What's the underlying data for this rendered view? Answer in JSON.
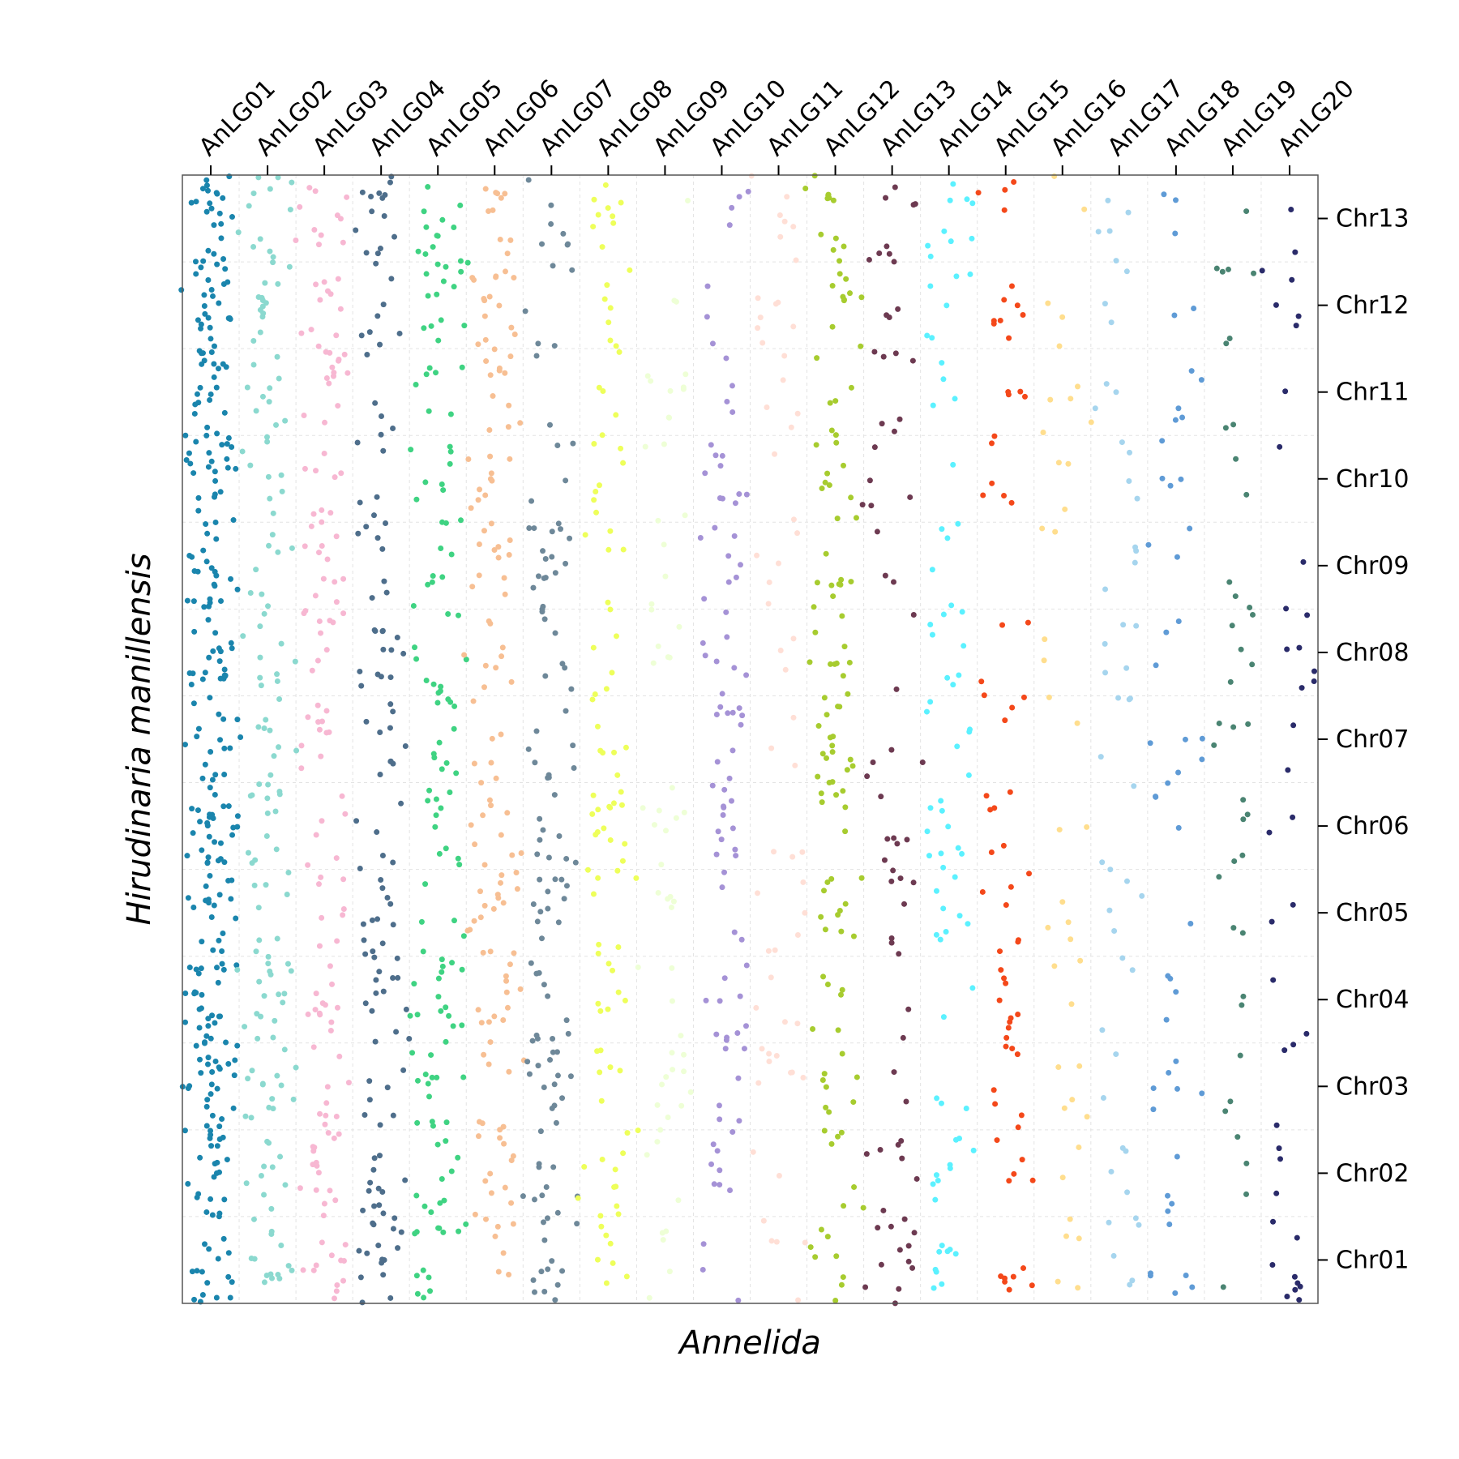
{
  "chart_data": {
    "type": "scatter",
    "title": "",
    "xlabel": "Annelida",
    "ylabel": "Hirudinaria manillensis",
    "x_categories": [
      "AnLG01",
      "AnLG02",
      "AnLG03",
      "AnLG04",
      "AnLG05",
      "AnLG06",
      "AnLG07",
      "AnLG08",
      "AnLG09",
      "AnLG10",
      "AnLG11",
      "AnLG12",
      "AnLG13",
      "AnLG14",
      "AnLG15",
      "AnLG16",
      "AnLG17",
      "AnLG18",
      "AnLG19",
      "AnLG20"
    ],
    "y_categories": [
      "Chr01",
      "Chr02",
      "Chr03",
      "Chr04",
      "Chr05",
      "Chr06",
      "Chr07",
      "Chr08",
      "Chr09",
      "Chr10",
      "Chr11",
      "Chr12",
      "Chr13"
    ],
    "x_tick_positions": [
      0.5,
      1.5,
      2.5,
      3.5,
      4.5,
      5.5,
      6.5,
      7.5,
      8.5,
      9.5,
      10.5,
      11.5,
      12.5,
      13.5,
      14.5,
      15.5,
      16.5,
      17.5,
      18.5,
      19.5
    ],
    "y_tick_positions": [
      0.5,
      1.5,
      2.5,
      3.5,
      4.5,
      5.5,
      6.5,
      7.5,
      8.5,
      9.5,
      10.5,
      11.5,
      12.5
    ],
    "xlim": [
      0,
      20
    ],
    "ylim": [
      0,
      13
    ],
    "grid": true,
    "x_ticks_position": "top",
    "y_ticks_position": "right",
    "series_colors": [
      "#1A85AD",
      "#8BD9CF",
      "#F7B7D2",
      "#4E6E8B",
      "#3FD382",
      "#F7BF93",
      "#6E8899",
      "#EEFF5A",
      "#EEFFD6",
      "#A592D6",
      "#FFDFD6",
      "#A7CC2F",
      "#6D3A51",
      "#5BF1FF",
      "#F4481A",
      "#FFDE8E",
      "#A6D5EE",
      "#5F9BD6",
      "#4A8472",
      "#2A2B6A"
    ],
    "points_per_category": [
      300,
      150,
      140,
      130,
      140,
      140,
      120,
      100,
      60,
      90,
      60,
      120,
      70,
      80,
      70,
      40,
      50,
      50,
      40,
      40
    ],
    "point_radius": 3.5
  }
}
